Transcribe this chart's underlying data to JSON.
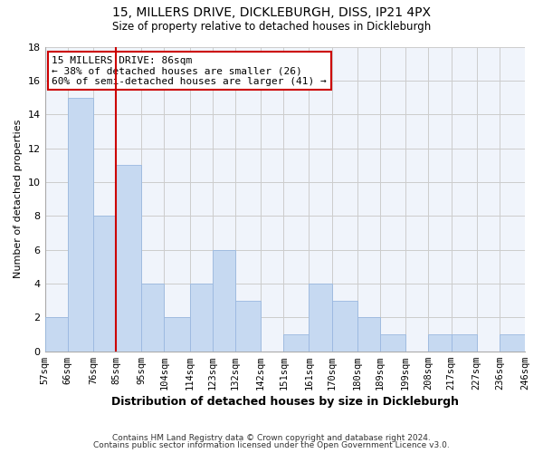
{
  "title_line1": "15, MILLERS DRIVE, DICKLEBURGH, DISS, IP21 4PX",
  "title_line2": "Size of property relative to detached houses in Dickleburgh",
  "xlabel": "Distribution of detached houses by size in Dickleburgh",
  "ylabel": "Number of detached properties",
  "bin_labels": [
    "57sqm",
    "66sqm",
    "76sqm",
    "85sqm",
    "95sqm",
    "104sqm",
    "114sqm",
    "123sqm",
    "132sqm",
    "142sqm",
    "151sqm",
    "161sqm",
    "170sqm",
    "180sqm",
    "189sqm",
    "199sqm",
    "208sqm",
    "217sqm",
    "227sqm",
    "236sqm",
    "246sqm"
  ],
  "bin_edges": [
    57,
    66,
    76,
    85,
    95,
    104,
    114,
    123,
    132,
    142,
    151,
    161,
    170,
    180,
    189,
    199,
    208,
    217,
    227,
    236,
    246
  ],
  "counts": [
    2,
    15,
    8,
    11,
    4,
    2,
    4,
    6,
    3,
    0,
    1,
    4,
    3,
    2,
    1,
    0,
    1,
    1,
    0,
    1
  ],
  "bar_color": "#c6d9f1",
  "bar_edge_color": "#9ab8e0",
  "vline_x": 85,
  "vline_color": "#cc0000",
  "annotation_line1": "15 MILLERS DRIVE: 86sqm",
  "annotation_line2": "← 38% of detached houses are smaller (26)",
  "annotation_line3": "60% of semi-detached houses are larger (41) →",
  "annotation_box_edge_color": "#cc0000",
  "annotation_box_face_color": "#ffffff",
  "ylim": [
    0,
    18
  ],
  "yticks": [
    0,
    2,
    4,
    6,
    8,
    10,
    12,
    14,
    16,
    18
  ],
  "grid_color": "#cccccc",
  "footer_line1": "Contains HM Land Registry data © Crown copyright and database right 2024.",
  "footer_line2": "Contains public sector information licensed under the Open Government Licence v3.0.",
  "bg_color": "#ffffff",
  "plot_bg_color": "#f0f4fb"
}
